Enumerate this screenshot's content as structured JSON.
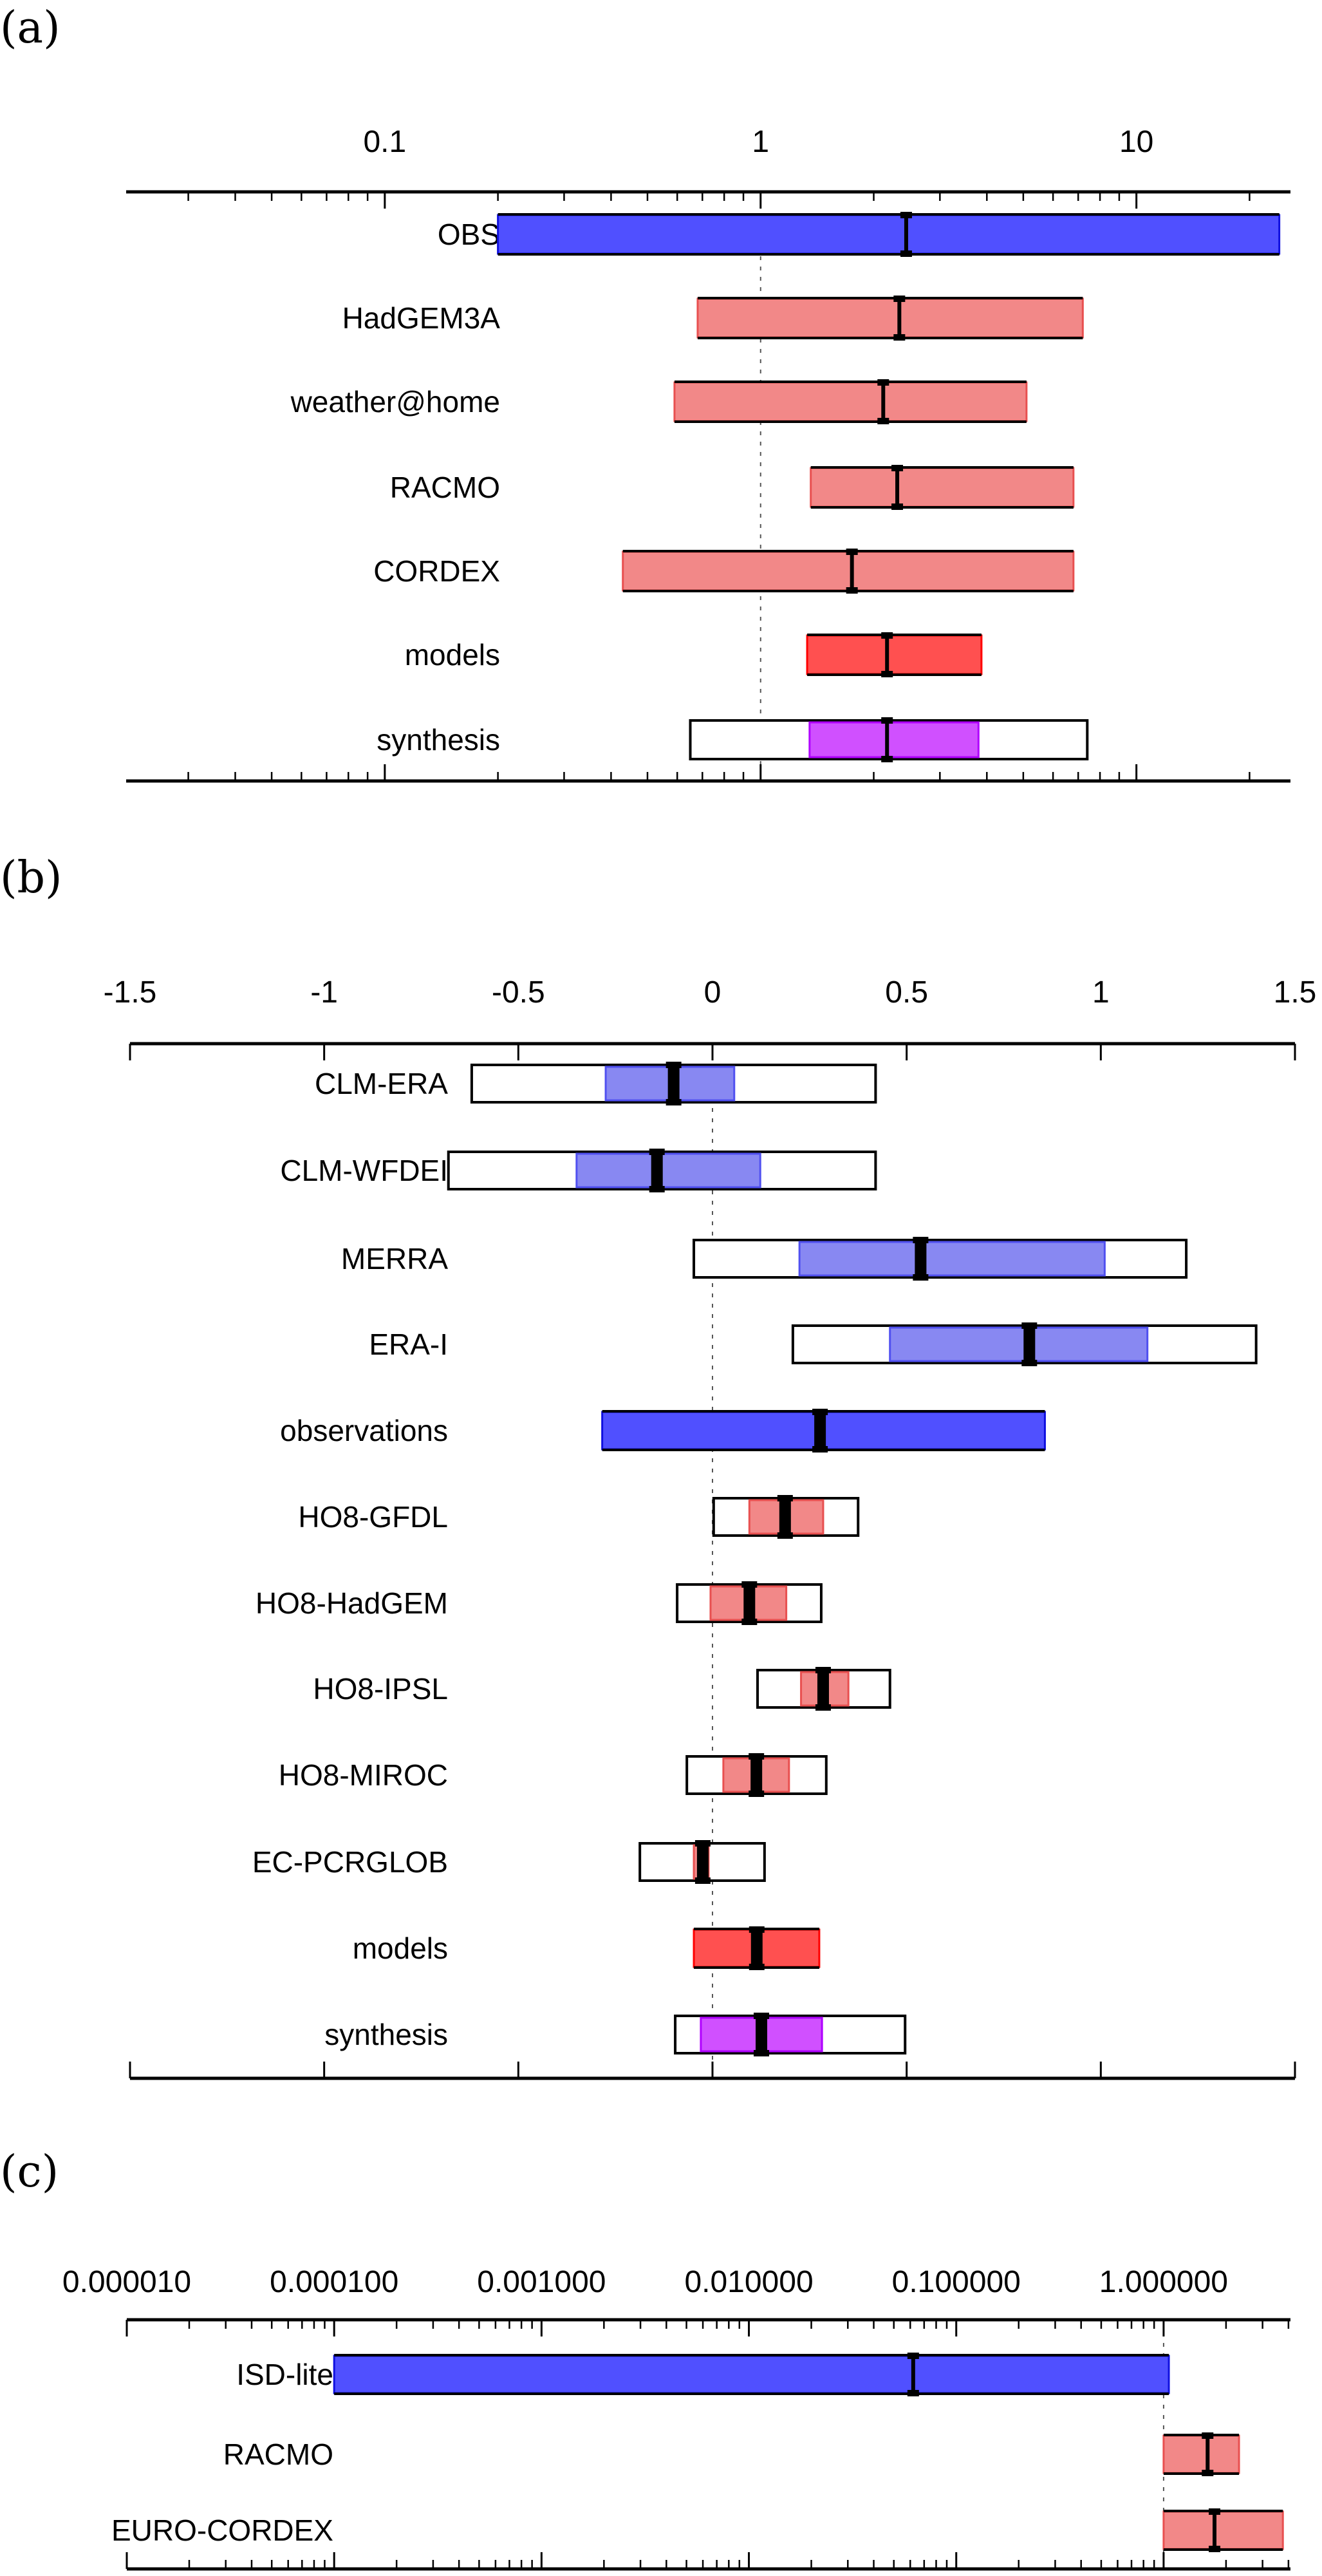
{
  "chart_data": [
    {
      "panel": "(a)",
      "type": "interval",
      "scale": "log",
      "xlim": [
        0.0205,
        25.7
      ],
      "x_ticks": [
        0.1,
        1,
        10
      ],
      "x_tick_labels": [
        "0.1",
        "1",
        "10"
      ],
      "reference_line": 1,
      "rows": [
        {
          "label": "OBS",
          "kind": "observation",
          "low": 0.2,
          "median": 2.44,
          "high": 24.0
        },
        {
          "label": "HadGEM3A",
          "kind": "model",
          "low": 0.68,
          "median": 2.34,
          "high": 7.2
        },
        {
          "label": "weather@home",
          "kind": "model",
          "low": 0.59,
          "median": 2.12,
          "high": 5.1
        },
        {
          "label": "RACMO",
          "kind": "model",
          "low": 1.36,
          "median": 2.31,
          "high": 6.8
        },
        {
          "label": "CORDEX",
          "kind": "model",
          "low": 0.43,
          "median": 1.75,
          "high": 6.8
        },
        {
          "label": "models",
          "kind": "models-synthesis",
          "low": 1.33,
          "median": 2.17,
          "high": 3.87
        },
        {
          "label": "synthesis",
          "kind": "synthesis",
          "low": 1.35,
          "median": 2.17,
          "high": 3.8,
          "outer_low": 0.65,
          "outer_high": 7.4
        }
      ]
    },
    {
      "panel": "(b)",
      "type": "interval",
      "scale": "linear",
      "xlim": [
        -1.5,
        1.5
      ],
      "x_ticks": [
        -1.5,
        -1,
        -0.5,
        0,
        0.5,
        1,
        1.5
      ],
      "x_tick_labels": [
        "-1.5",
        "-1",
        "-0.5",
        "0",
        "0.5",
        "1",
        "1.5"
      ],
      "reference_line": 0,
      "rows": [
        {
          "label": "CLM-ERA",
          "kind": "observation-light",
          "low": -0.275,
          "median": -0.1,
          "high": 0.056,
          "outer_low": -0.62,
          "outer_high": 0.42
        },
        {
          "label": "CLM-WFDEI",
          "kind": "observation-light",
          "low": -0.35,
          "median": -0.143,
          "high": 0.123,
          "outer_low": -0.68,
          "outer_high": 0.42
        },
        {
          "label": "MERRA",
          "kind": "observation-light",
          "low": 0.224,
          "median": 0.536,
          "high": 1.01,
          "outer_low": -0.048,
          "outer_high": 1.22
        },
        {
          "label": "ERA-I",
          "kind": "observation-light",
          "low": 0.457,
          "median": 0.816,
          "high": 1.12,
          "outer_low": 0.207,
          "outer_high": 1.4
        },
        {
          "label": "observations",
          "kind": "observation",
          "low": -0.284,
          "median": 0.277,
          "high": 0.856
        },
        {
          "label": "HO8-GFDL",
          "kind": "model",
          "low": 0.095,
          "median": 0.187,
          "high": 0.285,
          "outer_low": 0.003,
          "outer_high": 0.375
        },
        {
          "label": "HO8-HadGEM",
          "kind": "model",
          "low": -0.005,
          "median": 0.095,
          "high": 0.19,
          "outer_low": -0.091,
          "outer_high": 0.28
        },
        {
          "label": "HO8-IPSL",
          "kind": "model",
          "low": 0.228,
          "median": 0.285,
          "high": 0.35,
          "outer_low": 0.116,
          "outer_high": 0.457
        },
        {
          "label": "HO8-MIROC",
          "kind": "model",
          "low": 0.028,
          "median": 0.113,
          "high": 0.197,
          "outer_low": -0.066,
          "outer_high": 0.293
        },
        {
          "label": "EC-PCRGLOB",
          "kind": "model",
          "low": -0.048,
          "median": -0.025,
          "high": -0.01,
          "outer_low": -0.187,
          "outer_high": 0.134
        },
        {
          "label": "models",
          "kind": "models-synthesis",
          "low": -0.048,
          "median": 0.114,
          "high": 0.275
        },
        {
          "label": "synthesis",
          "kind": "synthesis",
          "low": -0.03,
          "median": 0.126,
          "high": 0.282,
          "outer_low": -0.096,
          "outer_high": 0.496
        }
      ]
    },
    {
      "panel": "(c)",
      "type": "interval",
      "scale": "log",
      "xlim": [
        1e-05,
        4.09
      ],
      "x_ticks": [
        1e-05,
        0.0001,
        0.001,
        0.01,
        0.1,
        1
      ],
      "x_tick_labels": [
        "0.000010",
        "0.000100",
        "0.001000",
        "0.010000",
        "0.100000",
        "1.000000"
      ],
      "reference_line": 1,
      "rows": [
        {
          "label": "ISD-lite",
          "kind": "observation",
          "low": 0.0001,
          "median": 0.062,
          "high": 1.06
        },
        {
          "label": "RACMO",
          "kind": "model",
          "low": 1.0,
          "median": 1.63,
          "high": 2.31
        },
        {
          "label": "EURO-CORDEX",
          "kind": "model",
          "low": 1.0,
          "median": 1.76,
          "high": 3.76
        }
      ]
    }
  ],
  "colors": {
    "observation": "#5050ff",
    "observation_border": "#1010e0",
    "observation_light": "#8888f2",
    "observation_light_border": "#5050f0",
    "model": "#f28888",
    "model_border": "#e85050",
    "models_synthesis": "#ff5050",
    "models_synthesis_border": "#ff0000",
    "synthesis": "#d050ff",
    "synthesis_border": "#b000ff"
  }
}
